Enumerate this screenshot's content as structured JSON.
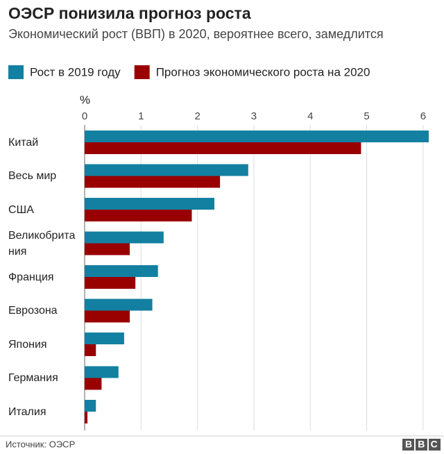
{
  "chart_data": {
    "type": "hbar",
    "title": "ОЭСР понизила прогноз роста",
    "subtitle": "Экономический рост (ВВП) в 2020, вероятнее всего, замедлится",
    "x_label": "%",
    "categories": [
      "Китай",
      "Весь мир",
      "США",
      "Великобритания",
      "Франция",
      "Еврозона",
      "Япония",
      "Германия",
      "Италия"
    ],
    "series": [
      {
        "name": "Рост в 2019 году",
        "color": "#1380A1",
        "values": [
          6.1,
          2.9,
          2.3,
          1.4,
          1.3,
          1.2,
          0.7,
          0.6,
          0.2
        ]
      },
      {
        "name": "Прогноз экономического роста на 2020",
        "color": "#990000",
        "values": [
          4.9,
          2.4,
          1.9,
          0.8,
          0.9,
          0.8,
          0.2,
          0.3,
          0.05
        ]
      }
    ],
    "xlim": [
      0,
      6.1
    ],
    "xticks": [
      0,
      1,
      2,
      3,
      4,
      5,
      6
    ],
    "grid": true,
    "source": "Источник: ОЭСР",
    "logo": "BBC"
  }
}
